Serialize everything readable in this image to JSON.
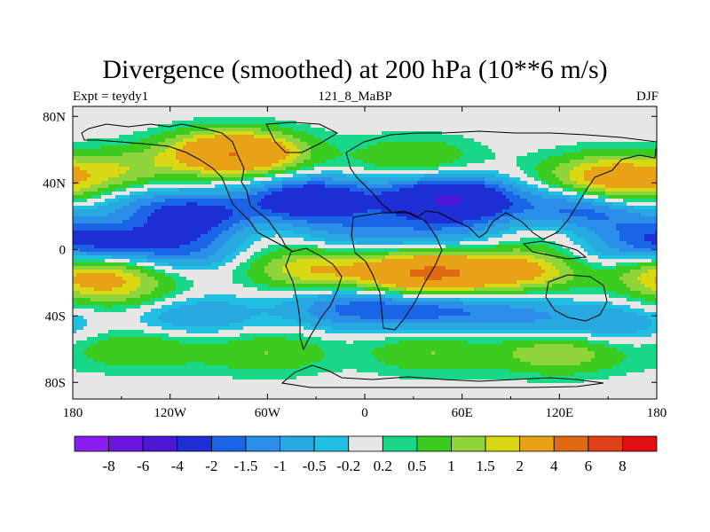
{
  "chart_data": {
    "type": "heatmap",
    "title": "Divergence (smoothed) at 200 hPa (10**6 m/s)",
    "subtitle_left": "Expt = teydy1",
    "subtitle_center": "121_8_MaBP",
    "subtitle_right": "DJF",
    "x_range": [
      -180,
      180
    ],
    "y_range": [
      -90,
      90
    ],
    "x_ticks": [
      {
        "value": -180,
        "label": "180"
      },
      {
        "value": -120,
        "label": "120W"
      },
      {
        "value": -60,
        "label": "60W"
      },
      {
        "value": 0,
        "label": "0"
      },
      {
        "value": 60,
        "label": "60E"
      },
      {
        "value": 120,
        "label": "120E"
      },
      {
        "value": 180,
        "label": "180"
      }
    ],
    "y_ticks": [
      {
        "value": 80,
        "label": "80N"
      },
      {
        "value": 40,
        "label": "40N"
      },
      {
        "value": 0,
        "label": "0"
      },
      {
        "value": -40,
        "label": "40S"
      },
      {
        "value": -80,
        "label": "80S"
      }
    ],
    "colorbar": {
      "colors": [
        "#8a1ef0",
        "#6a16e0",
        "#4c18d8",
        "#1f2fd6",
        "#1a64e6",
        "#2a8ee8",
        "#28a8e0",
        "#22c0e0",
        "#e6e6e6",
        "#18d888",
        "#3ccc20",
        "#8ed43a",
        "#d8d814",
        "#e8a218",
        "#e06a14",
        "#e04018",
        "#e01010"
      ],
      "labels": [
        "-8",
        "-6",
        "-4",
        "-2",
        "-1.5",
        "-1",
        "-0.5",
        "-0.2",
        "0.2",
        "0.5",
        "1",
        "1.5",
        "2",
        "4",
        "6",
        "8"
      ]
    },
    "field_features": [
      {
        "lon": 50,
        "lat": 30,
        "value": -4.0
      },
      {
        "lon": -35,
        "lat": 30,
        "value": -3.0
      },
      {
        "lon": -100,
        "lat": 20,
        "value": -2.0
      },
      {
        "lon": 130,
        "lat": 25,
        "value": -2.0
      },
      {
        "lon": -150,
        "lat": 28,
        "value": -1.0
      },
      {
        "lon": -165,
        "lat": 5,
        "value": -2.5
      },
      {
        "lon": -110,
        "lat": 0,
        "value": -1.2
      },
      {
        "lon": 20,
        "lat": 10,
        "value": -1.5
      },
      {
        "lon": -10,
        "lat": -35,
        "value": -1.5
      },
      {
        "lon": 40,
        "lat": -35,
        "value": -1.5
      },
      {
        "lon": 90,
        "lat": -40,
        "value": -1.0
      },
      {
        "lon": -105,
        "lat": -40,
        "value": -1.0
      },
      {
        "lon": 150,
        "lat": -45,
        "value": -1.0
      },
      {
        "lon": 130,
        "lat": -8,
        "value": -0.8
      },
      {
        "lon": 40,
        "lat": -15,
        "value": 4.2
      },
      {
        "lon": 100,
        "lat": -12,
        "value": 2.5
      },
      {
        "lon": -30,
        "lat": -12,
        "value": 2.0
      },
      {
        "lon": -170,
        "lat": -15,
        "value": 2.0
      },
      {
        "lon": -150,
        "lat": -25,
        "value": 1.0
      },
      {
        "lon": -80,
        "lat": 58,
        "value": 4.0
      },
      {
        "lon": -150,
        "lat": 48,
        "value": 1.2
      },
      {
        "lon": 30,
        "lat": 55,
        "value": 1.0
      },
      {
        "lon": 150,
        "lat": 45,
        "value": 2.0
      },
      {
        "lon": 165,
        "lat": 35,
        "value": 1.5
      },
      {
        "lon": -140,
        "lat": -60,
        "value": 1.0
      },
      {
        "lon": -60,
        "lat": -62,
        "value": 1.0
      },
      {
        "lon": 40,
        "lat": -62,
        "value": 1.0
      },
      {
        "lon": 120,
        "lat": -62,
        "value": 1.5
      }
    ]
  }
}
